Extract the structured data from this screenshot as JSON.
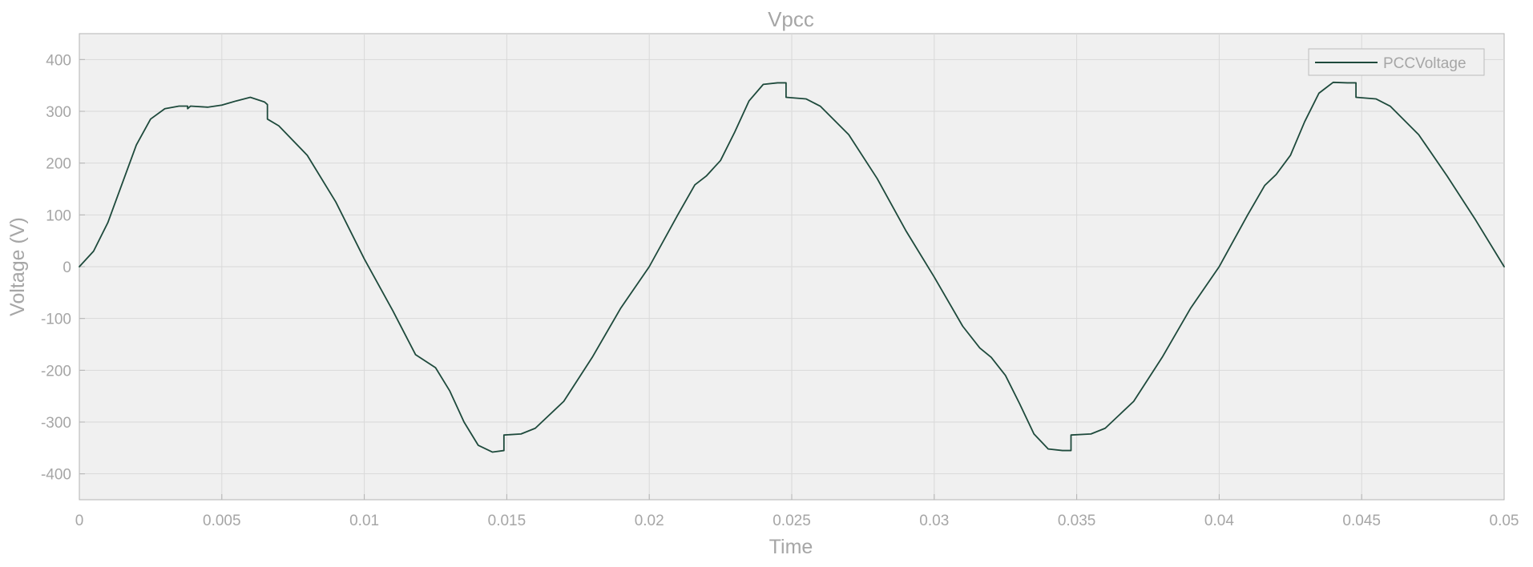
{
  "chart_data": {
    "type": "line",
    "title": "Vpcc",
    "xlabel": "Time",
    "ylabel": "Voltage (V)",
    "xlim": [
      0,
      0.05
    ],
    "ylim": [
      -450,
      450
    ],
    "xticks": [
      0,
      0.005,
      0.01,
      0.015,
      0.02,
      0.025,
      0.03,
      0.035,
      0.04,
      0.045,
      0.05
    ],
    "xtick_labels": [
      "0",
      "0.005",
      "0.01",
      "0.015",
      "0.02",
      "0.025",
      "0.03",
      "0.035",
      "0.04",
      "0.045",
      "0.05"
    ],
    "yticks": [
      400,
      300,
      200,
      100,
      0,
      -100,
      -200,
      -300,
      -400
    ],
    "ytick_labels": [
      "400",
      "300",
      "200",
      "100",
      "0",
      "-100",
      "-200",
      "-300",
      "-400"
    ],
    "grid": true,
    "legend": "top-right",
    "colors": {
      "line": "#1e4a3c",
      "plot_bg": "#f0f0f0",
      "grid": "#d9d9d9",
      "text": "#a6a6a6"
    },
    "series": [
      {
        "name": "PCCVoltage",
        "x": [
          0,
          0.0005,
          0.001,
          0.0015,
          0.002,
          0.0025,
          0.003,
          0.0035,
          0.0038,
          0.0038,
          0.0039,
          0.0045,
          0.005,
          0.0055,
          0.006,
          0.0065,
          0.0066,
          0.0066,
          0.007,
          0.008,
          0.009,
          0.01,
          0.011,
          0.0118,
          0.0125,
          0.013,
          0.0135,
          0.014,
          0.0145,
          0.0149,
          0.0149,
          0.0155,
          0.016,
          0.017,
          0.018,
          0.019,
          0.02,
          0.021,
          0.0216,
          0.022,
          0.0225,
          0.023,
          0.0235,
          0.024,
          0.0245,
          0.0248,
          0.0248,
          0.0255,
          0.026,
          0.027,
          0.028,
          0.029,
          0.03,
          0.031,
          0.0316,
          0.032,
          0.0325,
          0.033,
          0.0335,
          0.034,
          0.0345,
          0.0348,
          0.0348,
          0.0355,
          0.036,
          0.037,
          0.038,
          0.039,
          0.04,
          0.041,
          0.0416,
          0.042,
          0.0425,
          0.043,
          0.0435,
          0.044,
          0.0445,
          0.0448,
          0.0448,
          0.0455,
          0.046,
          0.047,
          0.048,
          0.049,
          0.05
        ],
        "y": [
          0,
          30,
          85,
          160,
          235,
          285,
          305,
          310,
          310,
          305,
          310,
          308,
          312,
          320,
          327,
          318,
          313,
          285,
          272,
          215,
          125,
          15,
          -85,
          -170,
          -195,
          -240,
          -300,
          -345,
          -358,
          -355,
          -325,
          -323,
          -312,
          -260,
          -175,
          -80,
          0,
          100,
          158,
          175,
          205,
          260,
          320,
          352,
          355,
          355,
          327,
          324,
          310,
          255,
          170,
          70,
          -20,
          -115,
          -157,
          -175,
          -210,
          -265,
          -323,
          -352,
          -355,
          -355,
          -325,
          -323,
          -312,
          -260,
          -175,
          -80,
          0,
          100,
          157,
          178,
          215,
          280,
          335,
          356,
          355,
          355,
          327,
          324,
          310,
          255,
          175,
          90,
          0
        ]
      }
    ]
  }
}
